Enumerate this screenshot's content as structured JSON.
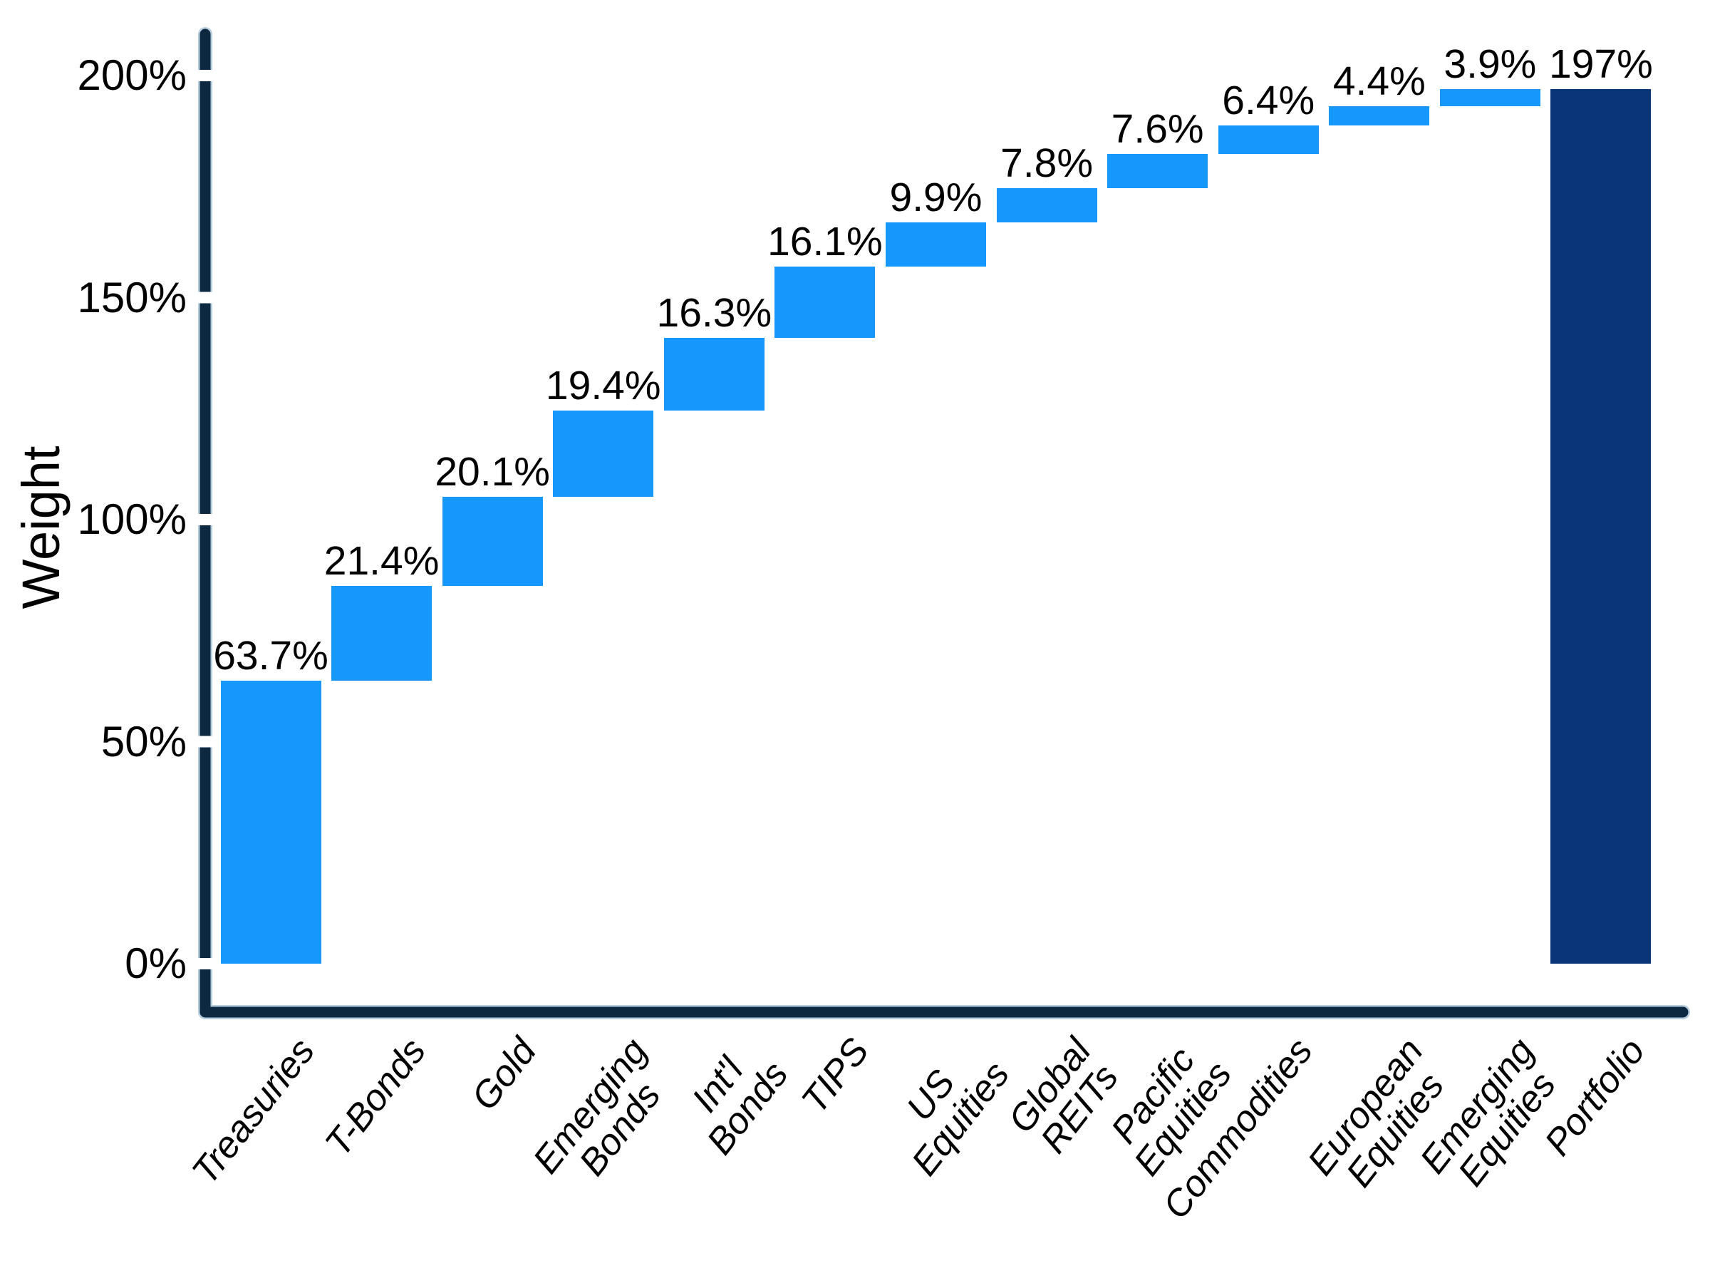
{
  "chart_data": {
    "type": "bar",
    "subtype": "waterfall",
    "title": "",
    "xlabel": "",
    "ylabel": "Weight",
    "grid": false,
    "legend": false,
    "ylim": [
      -11,
      209
    ],
    "yticks": [
      {
        "value": 0,
        "label": "0%"
      },
      {
        "value": 50,
        "label": "50%"
      },
      {
        "value": 100,
        "label": "100%"
      },
      {
        "value": 150,
        "label": "150%"
      },
      {
        "value": 200,
        "label": "200%"
      }
    ],
    "categories": [
      "Treasuries",
      "T-Bonds",
      "Gold",
      "Emerging Bonds",
      "Int'l Bonds",
      "TIPS",
      "US Equities",
      "Global REITs",
      "Pacific Equities",
      "Commodities",
      "European Equities",
      "Emerging Equities",
      "Portfolio"
    ],
    "bars": [
      {
        "name": "treasuries",
        "lines": [
          "Treasuries"
        ],
        "value": 63.7,
        "value_label": "63.7%",
        "start": 0,
        "end": 63.7,
        "total": false
      },
      {
        "name": "t-bonds",
        "lines": [
          "T-Bonds"
        ],
        "value": 21.4,
        "value_label": "21.4%",
        "start": 63.7,
        "end": 85.1,
        "total": false
      },
      {
        "name": "gold",
        "lines": [
          "Gold"
        ],
        "value": 20.1,
        "value_label": "20.1%",
        "start": 85.1,
        "end": 105.2,
        "total": false
      },
      {
        "name": "emerging-bonds",
        "lines": [
          "Emerging",
          "Bonds"
        ],
        "value": 19.4,
        "value_label": "19.4%",
        "start": 105.2,
        "end": 124.6,
        "total": false
      },
      {
        "name": "intl-bonds",
        "lines": [
          "Int'l",
          "Bonds"
        ],
        "value": 16.3,
        "value_label": "16.3%",
        "start": 124.6,
        "end": 140.9,
        "total": false
      },
      {
        "name": "tips",
        "lines": [
          "TIPS"
        ],
        "value": 16.1,
        "value_label": "16.1%",
        "start": 140.9,
        "end": 157.0,
        "total": false
      },
      {
        "name": "us-equities",
        "lines": [
          "US",
          "Equities"
        ],
        "value": 9.9,
        "value_label": "9.9%",
        "start": 157.0,
        "end": 166.9,
        "total": false
      },
      {
        "name": "global-reits",
        "lines": [
          "Global",
          "REITs"
        ],
        "value": 7.8,
        "value_label": "7.8%",
        "start": 166.9,
        "end": 174.7,
        "total": false
      },
      {
        "name": "pacific-equities",
        "lines": [
          "Pacific",
          "Equities"
        ],
        "value": 7.6,
        "value_label": "7.6%",
        "start": 174.7,
        "end": 182.3,
        "total": false
      },
      {
        "name": "commodities",
        "lines": [
          "Commodities"
        ],
        "value": 6.4,
        "value_label": "6.4%",
        "start": 182.3,
        "end": 188.7,
        "total": false
      },
      {
        "name": "european-equities",
        "lines": [
          "European",
          "Equities"
        ],
        "value": 4.4,
        "value_label": "4.4%",
        "start": 188.7,
        "end": 193.1,
        "total": false
      },
      {
        "name": "emerging-equities",
        "lines": [
          "Emerging",
          "Equities"
        ],
        "value": 3.9,
        "value_label": "3.9%",
        "start": 193.1,
        "end": 197.0,
        "total": false
      },
      {
        "name": "portfolio",
        "lines": [
          "Portfolio"
        ],
        "value": 197,
        "value_label": "197%",
        "start": 0,
        "end": 197.0,
        "total": true
      }
    ],
    "colors": {
      "increment_bar": "#1697FC",
      "total_bar": "#0A3577",
      "axis": "#0D2942",
      "axis_glow": "#A9C4D8",
      "text": "#000000",
      "background": "#FFFFFF"
    }
  }
}
